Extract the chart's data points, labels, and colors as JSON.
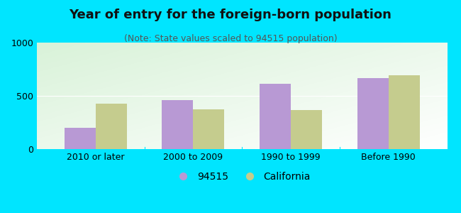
{
  "title": "Year of entry for the foreign-born population",
  "subtitle": "(Note: State values scaled to 94515 population)",
  "categories": [
    "2010 or later",
    "2000 to 2009",
    "1990 to 1999",
    "Before 1990"
  ],
  "values_94515": [
    200,
    460,
    615,
    670
  ],
  "values_california": [
    430,
    375,
    370,
    695
  ],
  "color_94515": "#b899d4",
  "color_california": "#c5cc8e",
  "legend_94515": "94515",
  "legend_california": "California",
  "ylim": [
    0,
    1000
  ],
  "yticks": [
    0,
    500,
    1000
  ],
  "bar_width": 0.32,
  "background_outer": "#00e5ff",
  "title_fontsize": 13,
  "subtitle_fontsize": 9,
  "tick_fontsize": 9,
  "legend_fontsize": 10
}
